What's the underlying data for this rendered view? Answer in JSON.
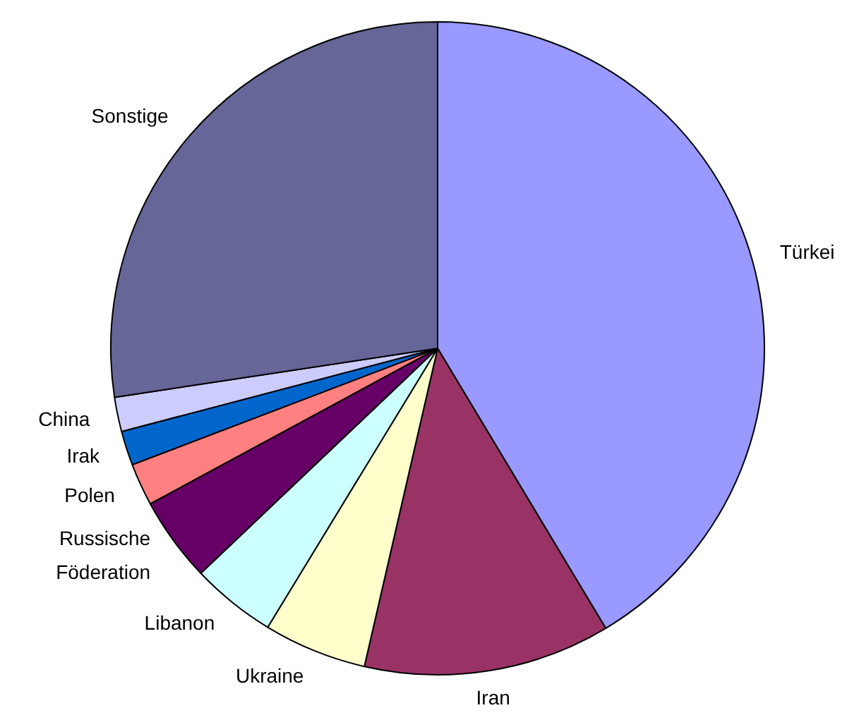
{
  "chart_data": {
    "type": "pie",
    "categories": [
      "Türkei",
      "Iran",
      "Ukraine",
      "Libanon",
      "Russische Föderation",
      "Polen",
      "Irak",
      "China",
      "Sonstige"
    ],
    "values": [
      41.4,
      12.2,
      5.1,
      4.2,
      4.2,
      2.1,
      1.7,
      1.7,
      27.4
    ],
    "colors": [
      "#9999ff",
      "#993366",
      "#ffffcc",
      "#ccffff",
      "#660066",
      "#ff8080",
      "#0066cc",
      "#ccccff",
      "#666699"
    ],
    "legend": false
  }
}
